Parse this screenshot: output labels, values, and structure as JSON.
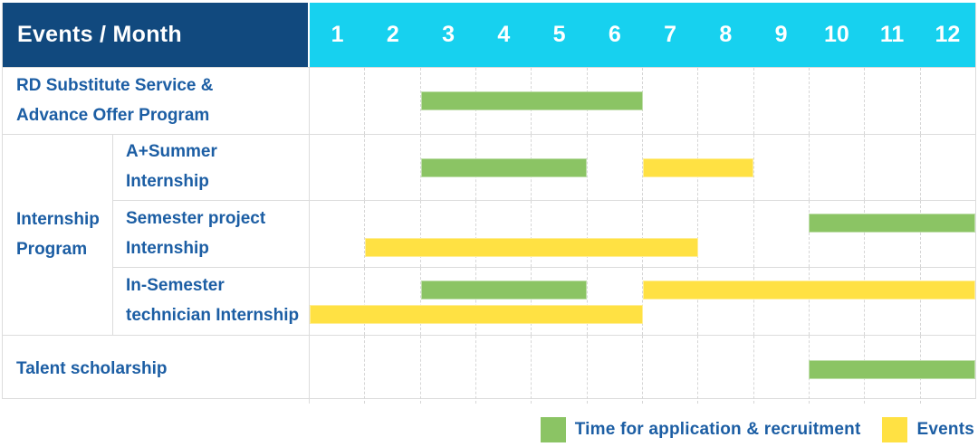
{
  "header": {
    "label": "Events / Month",
    "months": [
      "1",
      "2",
      "3",
      "4",
      "5",
      "6",
      "7",
      "8",
      "9",
      "10",
      "11",
      "12"
    ]
  },
  "legend": [
    {
      "key": "application",
      "label": "Time for application & recruitment",
      "color": "#8BC464"
    },
    {
      "key": "events",
      "label": "Events",
      "color": "#FFE143"
    }
  ],
  "colors": {
    "header_bg": "#11497E",
    "months_bg": "#17D1EF",
    "label_text": "#1C5EA4",
    "application_green": "#8BC464",
    "events_yellow": "#FFE143",
    "grid_line": "#DCDCDC"
  },
  "chart_data": {
    "type": "gantt",
    "unit": "month",
    "x_range": [
      1,
      12
    ],
    "x_ticks": [
      "1",
      "2",
      "3",
      "4",
      "5",
      "6",
      "7",
      "8",
      "9",
      "10",
      "11",
      "12"
    ],
    "legend": [
      {
        "kind": "application",
        "label": "Time for application & recruitment"
      },
      {
        "kind": "events",
        "label": "Events"
      }
    ],
    "rows": [
      {
        "label": "RD Substitute Service &\nAdvance Offer Program",
        "tracks": [
          [
            {
              "kind": "application",
              "start": 3,
              "end": 6
            }
          ]
        ]
      },
      {
        "group": "Internship\nProgram",
        "subrows": [
          {
            "label": "A+Summer\nInternship",
            "tracks": [
              [
                {
                  "kind": "application",
                  "start": 3,
                  "end": 5
                },
                {
                  "kind": "events",
                  "start": 7,
                  "end": 8
                }
              ]
            ]
          },
          {
            "label": "Semester project\nInternship",
            "tracks": [
              [
                {
                  "kind": "application",
                  "start": 10,
                  "end": 12
                }
              ],
              [
                {
                  "kind": "events",
                  "start": 2,
                  "end": 7
                }
              ]
            ]
          },
          {
            "label": "In-Semester\ntechnician Internship",
            "tracks": [
              [
                {
                  "kind": "application",
                  "start": 3,
                  "end": 5
                },
                {
                  "kind": "events",
                  "start": 7,
                  "end": 12
                }
              ],
              [
                {
                  "kind": "events",
                  "start": 1,
                  "end": 6
                }
              ]
            ]
          }
        ]
      },
      {
        "label": "Talent scholarship",
        "tracks": [
          [
            {
              "kind": "application",
              "start": 10,
              "end": 12
            }
          ]
        ]
      }
    ]
  }
}
